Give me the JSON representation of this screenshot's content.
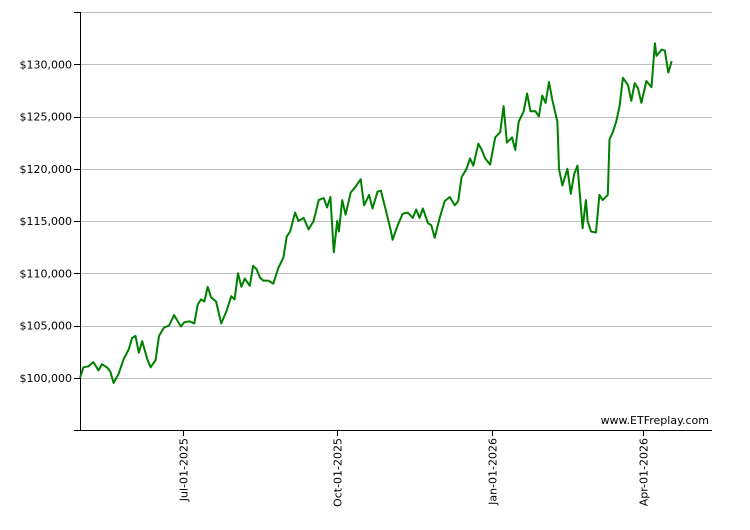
{
  "watermark": "www.ETFreplay.com",
  "colors": {
    "line": "#008000",
    "grid": "#c0c0c0",
    "axis": "#000000",
    "background": "#ffffff"
  },
  "chart_data": {
    "type": "line",
    "title": "",
    "xlabel": "",
    "ylabel": "",
    "ylim": [
      95000,
      135000
    ],
    "xlim": [
      "2025-05-01",
      "2026-05-12"
    ],
    "grid": {
      "horizontal": true,
      "vertical": false
    },
    "y_ticks": [
      {
        "value": 100000,
        "label": "$100,000"
      },
      {
        "value": 105000,
        "label": "$105,000"
      },
      {
        "value": 110000,
        "label": "$110,000"
      },
      {
        "value": 115000,
        "label": "$115,000"
      },
      {
        "value": 120000,
        "label": "$120,000"
      },
      {
        "value": 125000,
        "label": "$125,000"
      },
      {
        "value": 130000,
        "label": "$130,000"
      }
    ],
    "x_ticks": [
      {
        "value": "2025-07-01",
        "label": "Jul-01-2025"
      },
      {
        "value": "2025-10-01",
        "label": "Oct-01-2025"
      },
      {
        "value": "2026-01-01",
        "label": "Jan-01-2026"
      },
      {
        "value": "2026-04-01",
        "label": "Apr-01-2026"
      }
    ],
    "series": [
      {
        "color": "#008000",
        "points": [
          [
            "2025-05-01",
            100000
          ],
          [
            "2025-05-03",
            101000
          ],
          [
            "2025-05-06",
            101100
          ],
          [
            "2025-05-09",
            101500
          ],
          [
            "2025-05-12",
            100700
          ],
          [
            "2025-05-14",
            101300
          ],
          [
            "2025-05-17",
            101000
          ],
          [
            "2025-05-19",
            100600
          ],
          [
            "2025-05-21",
            99500
          ],
          [
            "2025-05-24",
            100400
          ],
          [
            "2025-05-27",
            101800
          ],
          [
            "2025-05-30",
            102700
          ],
          [
            "2025-06-01",
            103800
          ],
          [
            "2025-06-03",
            104000
          ],
          [
            "2025-06-05",
            102400
          ],
          [
            "2025-06-07",
            103500
          ],
          [
            "2025-06-10",
            101800
          ],
          [
            "2025-06-12",
            101000
          ],
          [
            "2025-06-15",
            101700
          ],
          [
            "2025-06-17",
            104000
          ],
          [
            "2025-06-20",
            104800
          ],
          [
            "2025-06-23",
            105000
          ],
          [
            "2025-06-26",
            106000
          ],
          [
            "2025-06-30",
            104900
          ],
          [
            "2025-07-02",
            105300
          ],
          [
            "2025-07-05",
            105400
          ],
          [
            "2025-07-08",
            105200
          ],
          [
            "2025-07-10",
            107000
          ],
          [
            "2025-07-12",
            107500
          ],
          [
            "2025-07-14",
            107300
          ],
          [
            "2025-07-16",
            108700
          ],
          [
            "2025-07-18",
            107700
          ],
          [
            "2025-07-21",
            107300
          ],
          [
            "2025-07-24",
            105200
          ],
          [
            "2025-07-27",
            106300
          ],
          [
            "2025-07-30",
            107800
          ],
          [
            "2025-08-01",
            107500
          ],
          [
            "2025-08-03",
            110000
          ],
          [
            "2025-08-05",
            108700
          ],
          [
            "2025-08-07",
            109500
          ],
          [
            "2025-08-10",
            108800
          ],
          [
            "2025-08-12",
            110700
          ],
          [
            "2025-08-14",
            110400
          ],
          [
            "2025-08-16",
            109600
          ],
          [
            "2025-08-18",
            109300
          ],
          [
            "2025-08-21",
            109300
          ],
          [
            "2025-08-24",
            109000
          ],
          [
            "2025-08-27",
            110500
          ],
          [
            "2025-08-30",
            111500
          ],
          [
            "2025-09-01",
            113500
          ],
          [
            "2025-09-03",
            114000
          ],
          [
            "2025-09-06",
            115800
          ],
          [
            "2025-09-08",
            115000
          ],
          [
            "2025-09-11",
            115300
          ],
          [
            "2025-09-14",
            114200
          ],
          [
            "2025-09-17",
            115000
          ],
          [
            "2025-09-20",
            117000
          ],
          [
            "2025-09-23",
            117200
          ],
          [
            "2025-09-25",
            116300
          ],
          [
            "2025-09-27",
            117300
          ],
          [
            "2025-09-29",
            112000
          ],
          [
            "2025-10-01",
            115000
          ],
          [
            "2025-10-02",
            114000
          ],
          [
            "2025-10-04",
            117000
          ],
          [
            "2025-10-06",
            115600
          ],
          [
            "2025-10-09",
            117700
          ],
          [
            "2025-10-12",
            118300
          ],
          [
            "2025-10-15",
            119000
          ],
          [
            "2025-10-17",
            116500
          ],
          [
            "2025-10-20",
            117500
          ],
          [
            "2025-10-22",
            116200
          ],
          [
            "2025-10-25",
            117800
          ],
          [
            "2025-10-27",
            117900
          ],
          [
            "2025-10-30",
            116000
          ],
          [
            "2025-11-02",
            114000
          ],
          [
            "2025-11-03",
            113200
          ],
          [
            "2025-11-06",
            114600
          ],
          [
            "2025-11-09",
            115700
          ],
          [
            "2025-11-12",
            115800
          ],
          [
            "2025-11-15",
            115300
          ],
          [
            "2025-11-17",
            116100
          ],
          [
            "2025-11-19",
            115300
          ],
          [
            "2025-11-21",
            116200
          ],
          [
            "2025-11-24",
            114800
          ],
          [
            "2025-11-26",
            114600
          ],
          [
            "2025-11-28",
            113400
          ],
          [
            "2025-12-01",
            115300
          ],
          [
            "2025-12-04",
            116900
          ],
          [
            "2025-12-07",
            117300
          ],
          [
            "2025-12-10",
            116500
          ],
          [
            "2025-12-12",
            116900
          ],
          [
            "2025-12-14",
            119200
          ],
          [
            "2025-12-17",
            120000
          ],
          [
            "2025-12-19",
            121000
          ],
          [
            "2025-12-21",
            120300
          ],
          [
            "2025-12-24",
            122400
          ],
          [
            "2025-12-26",
            121800
          ],
          [
            "2025-12-28",
            121000
          ],
          [
            "2025-12-31",
            120400
          ],
          [
            "2026-01-03",
            123000
          ],
          [
            "2026-01-06",
            123500
          ],
          [
            "2026-01-08",
            126000
          ],
          [
            "2026-01-10",
            122500
          ],
          [
            "2026-01-13",
            123000
          ],
          [
            "2026-01-15",
            121800
          ],
          [
            "2026-01-17",
            124500
          ],
          [
            "2026-01-20",
            125500
          ],
          [
            "2026-01-22",
            127200
          ],
          [
            "2026-01-24",
            125500
          ],
          [
            "2026-01-27",
            125500
          ],
          [
            "2026-01-29",
            125000
          ],
          [
            "2026-01-31",
            127000
          ],
          [
            "2026-02-02",
            126300
          ],
          [
            "2026-02-04",
            128300
          ],
          [
            "2026-02-06",
            126600
          ],
          [
            "2026-02-09",
            124500
          ],
          [
            "2026-02-10",
            120000
          ],
          [
            "2026-02-12",
            118400
          ],
          [
            "2026-02-15",
            120000
          ],
          [
            "2026-02-17",
            117600
          ],
          [
            "2026-02-19",
            119500
          ],
          [
            "2026-02-21",
            120300
          ],
          [
            "2026-02-24",
            114300
          ],
          [
            "2026-02-26",
            117000
          ],
          [
            "2026-02-27",
            115000
          ],
          [
            "2026-03-01",
            114000
          ],
          [
            "2026-03-04",
            113900
          ],
          [
            "2026-03-06",
            117500
          ],
          [
            "2026-03-08",
            117000
          ],
          [
            "2026-03-11",
            117500
          ],
          [
            "2026-03-12",
            122800
          ],
          [
            "2026-03-14",
            123500
          ],
          [
            "2026-03-16",
            124500
          ],
          [
            "2026-03-18",
            126000
          ],
          [
            "2026-03-20",
            128700
          ],
          [
            "2026-03-23",
            128000
          ],
          [
            "2026-03-25",
            126500
          ],
          [
            "2026-03-27",
            128200
          ],
          [
            "2026-03-29",
            127700
          ],
          [
            "2026-03-31",
            126300
          ],
          [
            "2026-04-03",
            128400
          ],
          [
            "2026-04-06",
            127800
          ],
          [
            "2026-04-08",
            132000
          ],
          [
            "2026-04-09",
            130800
          ],
          [
            "2026-04-12",
            131400
          ],
          [
            "2026-04-14",
            131300
          ],
          [
            "2026-04-16",
            129200
          ],
          [
            "2026-04-18",
            130300
          ]
        ]
      }
    ]
  }
}
